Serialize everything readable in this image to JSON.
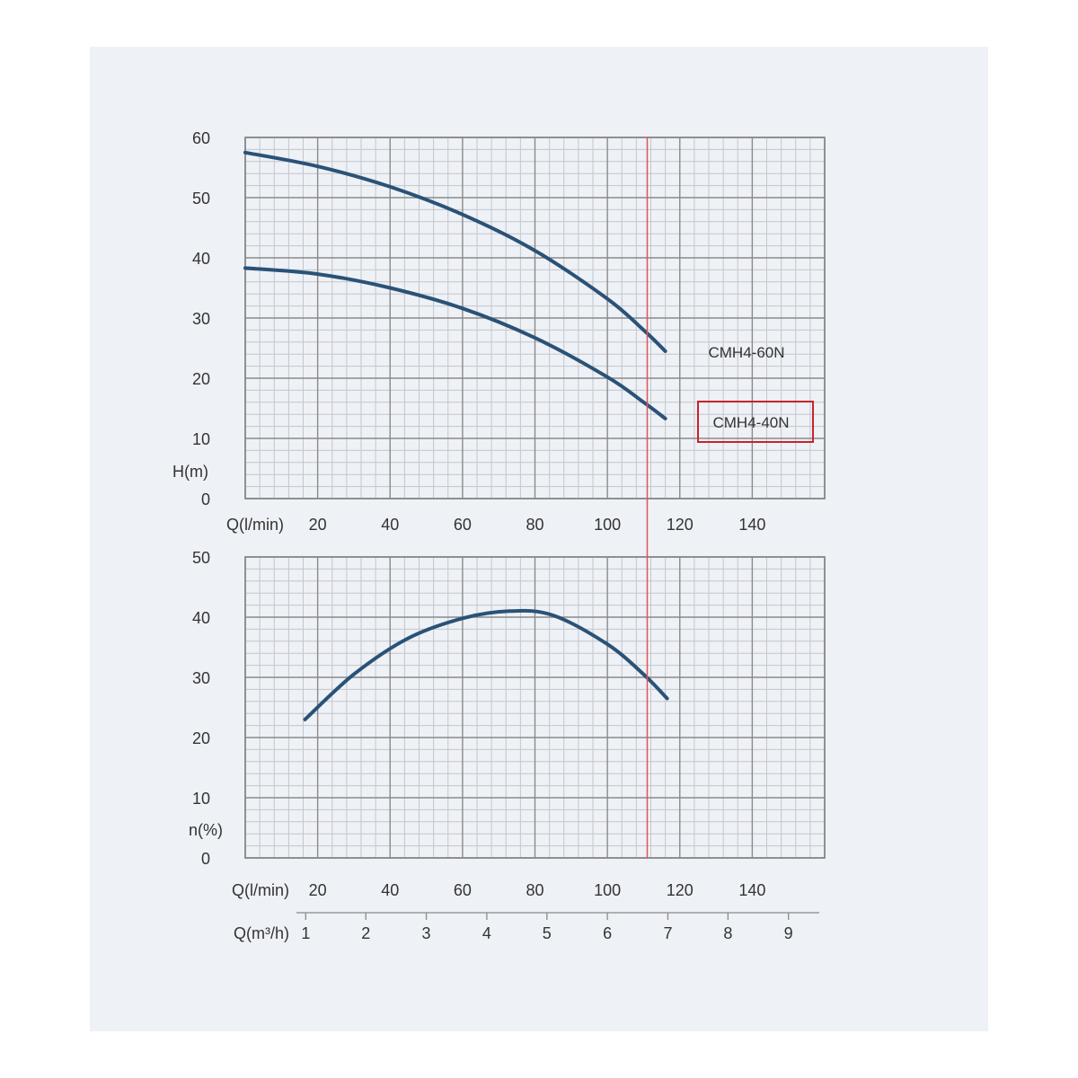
{
  "chart_data": [
    {
      "type": "line",
      "xlabel": "Q(l/min)",
      "ylabel": "H(m)",
      "xlim": [
        0,
        160
      ],
      "ylim": [
        0,
        60
      ],
      "x_ticks": [
        20,
        40,
        60,
        80,
        100,
        120,
        140
      ],
      "y_ticks": [
        0,
        10,
        20,
        30,
        40,
        50,
        60
      ],
      "grid": true,
      "reference_line_x": 111,
      "series": [
        {
          "name": "CMH4-60N",
          "x": [
            0,
            20,
            40,
            60,
            80,
            100,
            110,
            116
          ],
          "y": [
            57.5,
            55.2,
            51.8,
            47.2,
            41.2,
            33.2,
            28.0,
            24.5
          ]
        },
        {
          "name": "CMH4-40N",
          "x": [
            0,
            20,
            40,
            60,
            80,
            100,
            110,
            116
          ],
          "y": [
            38.3,
            37.3,
            35.0,
            31.6,
            26.7,
            20.2,
            16.0,
            13.3
          ]
        }
      ],
      "highlighted_series": "CMH4-40N"
    },
    {
      "type": "line",
      "xlabel": "Q(l/min)",
      "ylabel": "n(%)",
      "xlim": [
        0,
        160
      ],
      "ylim": [
        0,
        50
      ],
      "x_ticks": [
        20,
        40,
        60,
        80,
        100,
        120,
        140
      ],
      "y_ticks": [
        0,
        10,
        20,
        30,
        40,
        50
      ],
      "grid": true,
      "reference_line_x": 111,
      "series": [
        {
          "x": [
            16.5,
            30,
            45,
            60,
            73,
            85,
            100,
            110,
            116.5
          ],
          "y": [
            23,
            30.5,
            36.5,
            39.8,
            41,
            40.3,
            35.5,
            30.5,
            26.5
          ]
        }
      ],
      "secondary_axis": {
        "label": "Q(m³/h)",
        "ticks": [
          {
            "label": "1",
            "q": 16.7
          },
          {
            "label": "2",
            "q": 33.3
          },
          {
            "label": "3",
            "q": 50
          },
          {
            "label": "4",
            "q": 66.7
          },
          {
            "label": "5",
            "q": 83.3
          },
          {
            "label": "6",
            "q": 100
          },
          {
            "label": "7",
            "q": 116.7
          },
          {
            "label": "8",
            "q": 133.3
          },
          {
            "label": "9",
            "q": 150
          }
        ]
      }
    }
  ],
  "colors": {
    "curve": "#2a5277",
    "grid_major": "#8a8a8a",
    "grid_minor": "#c3c6cb",
    "reference_line": "#e0555a",
    "highlight_box": "#c8232a",
    "panel_background": "#eef1f6"
  }
}
